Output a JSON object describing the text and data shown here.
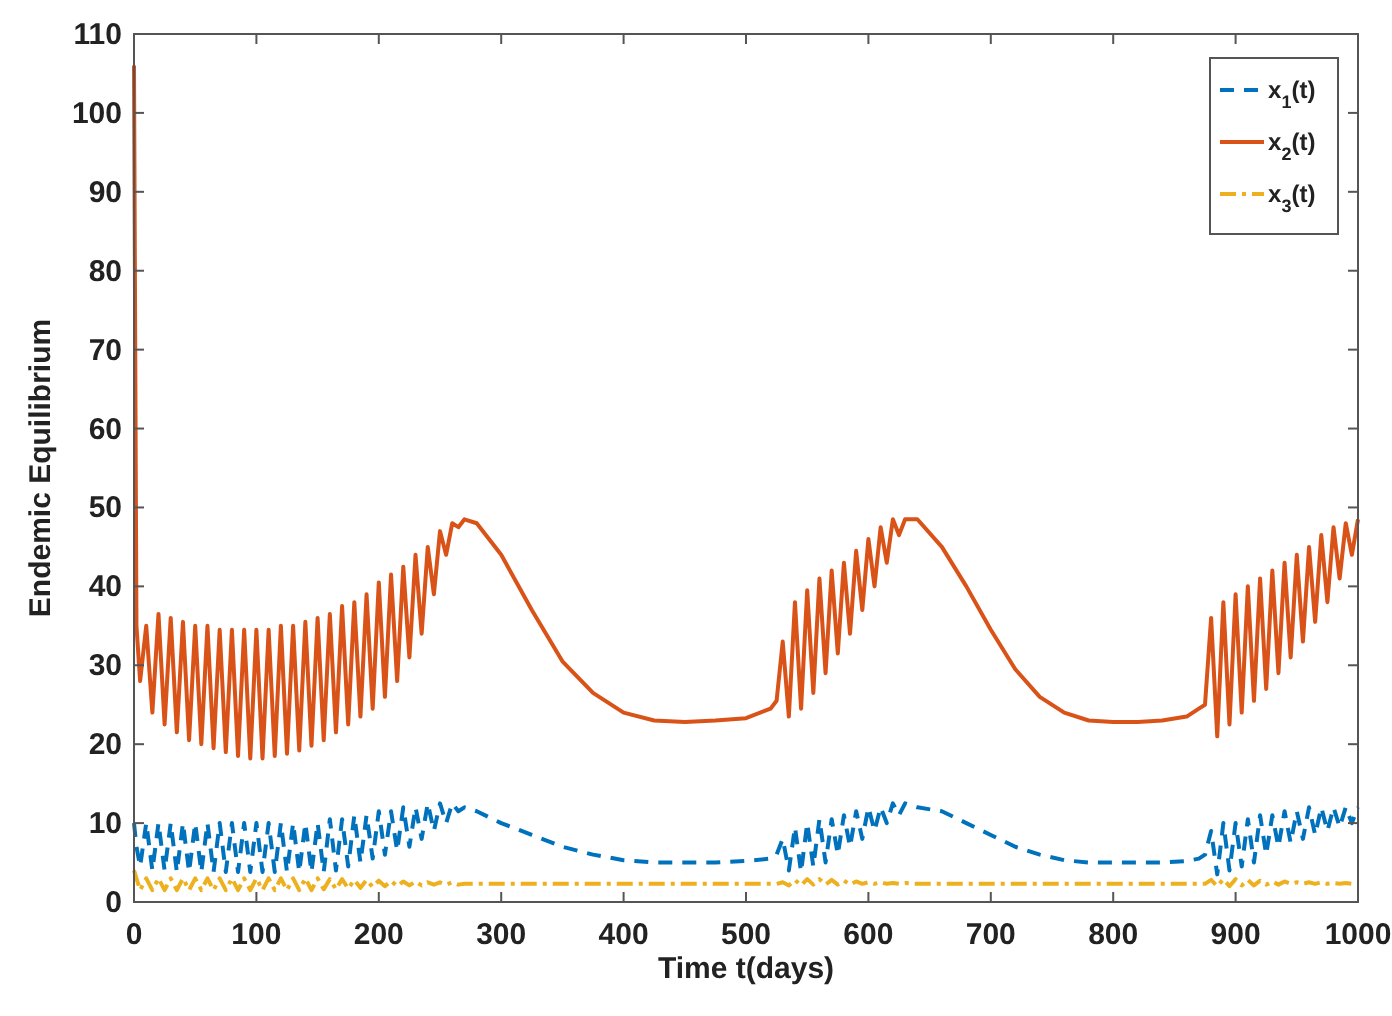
{
  "chart_data": {
    "type": "line",
    "xlabel": "Time t(days)",
    "ylabel": "Endemic Equilibrium",
    "xlim": [
      0,
      1000
    ],
    "xticks": [
      0,
      100,
      200,
      300,
      400,
      500,
      600,
      700,
      800,
      900,
      1000
    ],
    "ylim": [
      0,
      110
    ],
    "yticks": [
      0,
      10,
      20,
      30,
      40,
      50,
      60,
      70,
      80,
      90,
      100,
      110
    ],
    "grid": false,
    "legend": "top right",
    "x": [
      0,
      2,
      5,
      10,
      15,
      20,
      25,
      30,
      35,
      40,
      45,
      50,
      55,
      60,
      65,
      70,
      75,
      80,
      85,
      90,
      95,
      100,
      105,
      110,
      115,
      120,
      125,
      130,
      135,
      140,
      145,
      150,
      155,
      160,
      165,
      170,
      175,
      180,
      185,
      190,
      195,
      200,
      205,
      210,
      215,
      220,
      225,
      230,
      235,
      240,
      245,
      250,
      255,
      260,
      265,
      270,
      280,
      300,
      325,
      350,
      375,
      400,
      425,
      450,
      475,
      500,
      520,
      525,
      530,
      535,
      540,
      545,
      550,
      555,
      560,
      565,
      570,
      575,
      580,
      585,
      590,
      595,
      600,
      605,
      610,
      615,
      620,
      625,
      630,
      640,
      660,
      680,
      700,
      720,
      740,
      760,
      780,
      800,
      820,
      840,
      860,
      870,
      875,
      880,
      885,
      890,
      895,
      900,
      905,
      910,
      915,
      920,
      925,
      930,
      935,
      940,
      945,
      950,
      955,
      960,
      965,
      970,
      975,
      980,
      985,
      990,
      995,
      1000
    ],
    "series": [
      {
        "name": "x$_{1}$(t)",
        "color": "#0072bd",
        "line_style": "dashed",
        "values": [
          10,
          7,
          4.5,
          10,
          4,
          10,
          4,
          10,
          3.8,
          10,
          3.8,
          10,
          3.8,
          10,
          3.8,
          10,
          3.8,
          10,
          3.8,
          10,
          3.8,
          10,
          3.8,
          10,
          3.8,
          10,
          3.8,
          10,
          3.8,
          10,
          3.8,
          10,
          3.8,
          10.5,
          4,
          10.5,
          4.5,
          11,
          5,
          11,
          5.5,
          11.5,
          6,
          11.5,
          6.5,
          12,
          7,
          12,
          8,
          12.5,
          9,
          12.5,
          10,
          12.5,
          11.5,
          12,
          11.5,
          10,
          8.5,
          7,
          6,
          5.3,
          5,
          5,
          5,
          5.2,
          5.5,
          6,
          8,
          4,
          9.5,
          3.8,
          10,
          4.5,
          10.5,
          5,
          10.5,
          6,
          11,
          7,
          11.5,
          8,
          12,
          9,
          12,
          10,
          12.5,
          11,
          12.5,
          12,
          11.5,
          10,
          8.5,
          7,
          6,
          5.3,
          5,
          5,
          5,
          5,
          5.2,
          5.5,
          6,
          9,
          3.5,
          10,
          4,
          10,
          4.5,
          10.5,
          5,
          11,
          6,
          11,
          7,
          11.5,
          7.5,
          11.5,
          8,
          12,
          8.5,
          12,
          9,
          12,
          9.5,
          12,
          10,
          12
        ]
      },
      {
        "name": "x$_{2}$(t)",
        "color": "#d95319",
        "line_style": "solid",
        "values": [
          106,
          35,
          28,
          35,
          24,
          36.5,
          22.5,
          36,
          21.5,
          35.5,
          20.5,
          35,
          20,
          35,
          19.5,
          34.5,
          19,
          34.5,
          18.5,
          34.5,
          18.2,
          34.5,
          18.2,
          34.5,
          18.5,
          35,
          18.8,
          35,
          19.2,
          35.5,
          19.8,
          36,
          20.5,
          36.5,
          21.5,
          37.5,
          22.5,
          38,
          23.5,
          39,
          24.5,
          40.5,
          26,
          41.5,
          28,
          42.5,
          31,
          44,
          34,
          45,
          39,
          47,
          44,
          48,
          47.5,
          48.5,
          48,
          44,
          37,
          30.5,
          26.5,
          24,
          23,
          22.8,
          23,
          23.3,
          24.5,
          25.5,
          33,
          23.5,
          38,
          24.5,
          39.5,
          26.5,
          41,
          29,
          42,
          31.5,
          43,
          34,
          44.5,
          37,
          46,
          40,
          47.5,
          43,
          48.5,
          46.5,
          48.5,
          48.5,
          45,
          40,
          34.5,
          29.5,
          26,
          24,
          23,
          22.8,
          22.8,
          23,
          23.5,
          24.5,
          25,
          36,
          21,
          38,
          22.5,
          39,
          24,
          40,
          25.5,
          41,
          27,
          42,
          29,
          43,
          31,
          44,
          33,
          45,
          35.5,
          46.5,
          38,
          47.5,
          41,
          48,
          44,
          48.5
        ]
      },
      {
        "name": "x$_{3}$(t)",
        "color": "#edb120",
        "line_style": "dashdot",
        "values": [
          4,
          3,
          1.5,
          3,
          1.5,
          3,
          1.5,
          3,
          1.5,
          3,
          1.5,
          3,
          1.5,
          3,
          1.5,
          3,
          1.5,
          3,
          1.5,
          3,
          1.5,
          3,
          1.5,
          3,
          1.5,
          3,
          1.5,
          3,
          1.5,
          3,
          1.5,
          3,
          1.6,
          2.9,
          1.6,
          2.9,
          1.7,
          2.8,
          1.8,
          2.8,
          1.9,
          2.7,
          2,
          2.7,
          2,
          2.6,
          2.1,
          2.6,
          2.1,
          2.5,
          2.2,
          2.5,
          2.2,
          2.5,
          2.2,
          2.3,
          2.3,
          2.3,
          2.3,
          2.3,
          2.3,
          2.3,
          2.3,
          2.3,
          2.3,
          2.3,
          2.3,
          2.3,
          2.5,
          2.1,
          2.8,
          2.1,
          2.9,
          2.2,
          2.9,
          2.2,
          2.8,
          2.2,
          2.7,
          2.2,
          2.6,
          2.3,
          2.5,
          2.3,
          2.5,
          2.3,
          2.4,
          2.3,
          2.4,
          2.3,
          2.3,
          2.3,
          2.3,
          2.3,
          2.3,
          2.3,
          2.3,
          2.3,
          2.3,
          2.3,
          2.3,
          2.3,
          2.3,
          2.8,
          2,
          2.9,
          2,
          2.9,
          2.1,
          2.8,
          2.1,
          2.7,
          2.2,
          2.6,
          2.2,
          2.6,
          2.3,
          2.5,
          2.3,
          2.5,
          2.3,
          2.5,
          2.3,
          2.4,
          2.3,
          2.4,
          2.3,
          2.4
        ]
      }
    ]
  }
}
